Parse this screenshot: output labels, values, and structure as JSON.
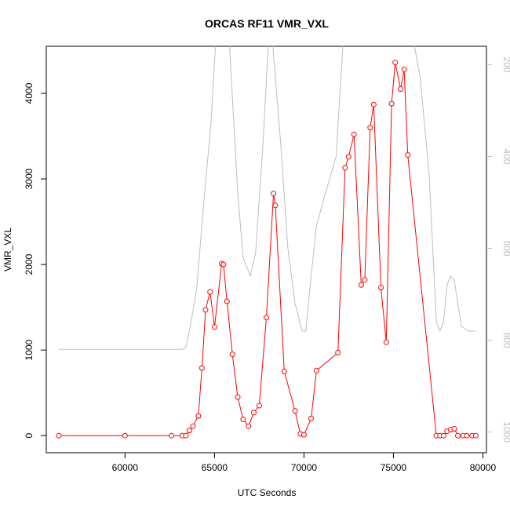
{
  "chart_data": {
    "type": "line",
    "title": "ORCAS RF11 VMR_VXL",
    "xlabel": "UTC Seconds",
    "ylabel": "VMR_VXL",
    "xlim": [
      55600,
      80200
    ],
    "ylim": [
      -200,
      4550
    ],
    "x_ticks": [
      60000,
      65000,
      70000,
      75000,
      80000
    ],
    "y_ticks": [
      0,
      1000,
      2000,
      3000,
      4000
    ],
    "grid": false,
    "legend": "none",
    "series": [
      {
        "color": "#ff0000",
        "marker": "open-circle",
        "x": [
          56300,
          60000,
          62600,
          63200,
          63400,
          63600,
          63800,
          64100,
          64300,
          64500,
          64750,
          65000,
          65400,
          65500,
          65700,
          66000,
          66300,
          66600,
          66900,
          67200,
          67500,
          67900,
          68300,
          68400,
          68900,
          69500,
          69800,
          70000,
          70400,
          70700,
          71900,
          72300,
          72500,
          72800,
          73200,
          73400,
          73700,
          73900,
          74300,
          74600,
          74900,
          75100,
          75400,
          75600,
          75800,
          77400,
          77600,
          77800,
          78000,
          78200,
          78400,
          78600,
          78900,
          79100,
          79400,
          79600
        ],
        "y": [
          0,
          0,
          0,
          0,
          0,
          60,
          110,
          230,
          790,
          1470,
          1680,
          1270,
          2010,
          2000,
          1570,
          950,
          450,
          190,
          110,
          270,
          350,
          1380,
          2830,
          2690,
          750,
          290,
          20,
          10,
          200,
          760,
          970,
          3130,
          3260,
          3520,
          1760,
          1820,
          3600,
          3870,
          1730,
          1090,
          3880,
          4360,
          4050,
          4280,
          3280,
          0,
          0,
          0,
          50,
          70,
          80,
          0,
          0,
          0,
          0,
          0
        ]
      },
      {
        "axis": "right",
        "color": "#bdbdbd",
        "x": [
          56300,
          63200,
          63400,
          63600,
          64000,
          64400,
          64800,
          65100,
          65500,
          65800,
          66300,
          66600,
          67000,
          67300,
          67700,
          68000,
          68200,
          68700,
          69100,
          69500,
          69900,
          70100,
          70400,
          70700,
          71200,
          71800,
          72200,
          72500,
          73000,
          73200,
          73300,
          73500,
          74300,
          74400,
          74600,
          74800,
          75300,
          75600,
          76000,
          76500,
          77000,
          77400,
          77600,
          77800,
          78000,
          78200,
          78400,
          78600,
          78800,
          79200,
          79600
        ],
        "y": [
          820,
          820,
          815,
          780,
          690,
          500,
          330,
          130,
          80,
          130,
          480,
          620,
          660,
          610,
          380,
          160,
          130,
          370,
          600,
          720,
          780,
          780,
          660,
          550,
          480,
          400,
          140,
          120,
          130,
          140,
          150,
          140,
          140,
          150,
          130,
          130,
          110,
          140,
          120,
          230,
          440,
          760,
          780,
          760,
          680,
          660,
          670,
          720,
          770,
          780,
          780
        ]
      }
    ],
    "y2lim": [
      1045,
      160
    ],
    "y2_ticks": [
      200,
      400,
      600,
      800,
      1000
    ]
  }
}
